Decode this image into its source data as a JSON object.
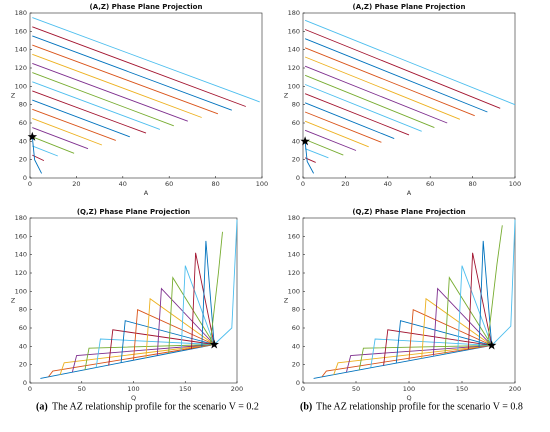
{
  "chart_data": [
    {
      "type": "line",
      "title": "(A,Z) Phase Plane Projection",
      "xlabel": "A",
      "ylabel": "Z",
      "xlim": [
        0,
        100
      ],
      "xticks": [
        0,
        20,
        40,
        60,
        80,
        100
      ],
      "ylim": [
        0,
        180
      ],
      "yticks": [
        0,
        20,
        40,
        60,
        80,
        100,
        120,
        140,
        160,
        180
      ],
      "star": {
        "x": 1,
        "y": 45
      },
      "series": [
        {
          "color": "#4dbeee",
          "x": [
            1,
            99
          ],
          "values": [
            175,
            83
          ]
        },
        {
          "color": "#a2142f",
          "x": [
            1,
            93
          ],
          "values": [
            165,
            78
          ]
        },
        {
          "color": "#0072bd",
          "x": [
            1,
            87
          ],
          "values": [
            155,
            74
          ]
        },
        {
          "color": "#d95319",
          "x": [
            1,
            81
          ],
          "values": [
            145,
            70
          ]
        },
        {
          "color": "#edb120",
          "x": [
            1,
            74
          ],
          "values": [
            135,
            66
          ]
        },
        {
          "color": "#7e2f8e",
          "x": [
            1,
            68
          ],
          "values": [
            125,
            62
          ]
        },
        {
          "color": "#77ac30",
          "x": [
            1,
            62
          ],
          "values": [
            115,
            57
          ]
        },
        {
          "color": "#4dbeee",
          "x": [
            1,
            56
          ],
          "values": [
            105,
            53
          ]
        },
        {
          "color": "#a2142f",
          "x": [
            1,
            50
          ],
          "values": [
            95,
            49
          ]
        },
        {
          "color": "#0072bd",
          "x": [
            1,
            43
          ],
          "values": [
            85,
            45
          ]
        },
        {
          "color": "#d95319",
          "x": [
            1,
            37
          ],
          "values": [
            75,
            41
          ]
        },
        {
          "color": "#edb120",
          "x": [
            1,
            31
          ],
          "values": [
            65,
            36
          ]
        },
        {
          "color": "#7e2f8e",
          "x": [
            1,
            25
          ],
          "values": [
            55,
            32
          ]
        },
        {
          "color": "#77ac30",
          "x": [
            1,
            19
          ],
          "values": [
            45,
            27
          ]
        },
        {
          "color": "#4dbeee",
          "x": [
            1,
            12
          ],
          "values": [
            35,
            24
          ]
        },
        {
          "color": "#a2142f",
          "x": [
            1,
            6
          ],
          "values": [
            25,
            19
          ]
        },
        {
          "color": "#0072bd",
          "x": [
            1,
            2,
            5
          ],
          "values": [
            45,
            20,
            5
          ]
        }
      ]
    },
    {
      "type": "line",
      "title": "(A,Z) Phase Plane Projection",
      "xlabel": "A",
      "ylabel": "Z",
      "xlim": [
        0,
        100
      ],
      "xticks": [
        0,
        20,
        40,
        60,
        80,
        100
      ],
      "ylim": [
        0,
        180
      ],
      "yticks": [
        0,
        20,
        40,
        60,
        80,
        100,
        120,
        140,
        160,
        180
      ],
      "star": {
        "x": 1,
        "y": 40
      },
      "series": [
        {
          "color": "#4dbeee",
          "x": [
            1,
            100
          ],
          "values": [
            172,
            80
          ]
        },
        {
          "color": "#a2142f",
          "x": [
            1,
            93
          ],
          "values": [
            162,
            76
          ]
        },
        {
          "color": "#0072bd",
          "x": [
            1,
            87
          ],
          "values": [
            152,
            72
          ]
        },
        {
          "color": "#d95319",
          "x": [
            1,
            81
          ],
          "values": [
            142,
            68
          ]
        },
        {
          "color": "#edb120",
          "x": [
            1,
            74
          ],
          "values": [
            132,
            64
          ]
        },
        {
          "color": "#7e2f8e",
          "x": [
            1,
            68
          ],
          "values": [
            122,
            60
          ]
        },
        {
          "color": "#77ac30",
          "x": [
            1,
            62
          ],
          "values": [
            112,
            55
          ]
        },
        {
          "color": "#4dbeee",
          "x": [
            1,
            56
          ],
          "values": [
            102,
            51
          ]
        },
        {
          "color": "#a2142f",
          "x": [
            1,
            50
          ],
          "values": [
            92,
            47
          ]
        },
        {
          "color": "#0072bd",
          "x": [
            1,
            43
          ],
          "values": [
            82,
            43
          ]
        },
        {
          "color": "#d95319",
          "x": [
            1,
            37
          ],
          "values": [
            72,
            39
          ]
        },
        {
          "color": "#edb120",
          "x": [
            1,
            31
          ],
          "values": [
            62,
            34
          ]
        },
        {
          "color": "#7e2f8e",
          "x": [
            1,
            25
          ],
          "values": [
            52,
            30
          ]
        },
        {
          "color": "#77ac30",
          "x": [
            1,
            19
          ],
          "values": [
            42,
            25
          ]
        },
        {
          "color": "#4dbeee",
          "x": [
            1,
            12
          ],
          "values": [
            32,
            22
          ]
        },
        {
          "color": "#a2142f",
          "x": [
            1,
            6
          ],
          "values": [
            22,
            17
          ]
        },
        {
          "color": "#0072bd",
          "x": [
            1,
            2,
            5
          ],
          "values": [
            40,
            18,
            5
          ]
        }
      ]
    },
    {
      "type": "line",
      "title": "(Q,Z) Phase Plane Projection",
      "xlabel": "Q",
      "ylabel": "Z",
      "xlim": [
        0,
        200
      ],
      "xticks": [
        0,
        50,
        100,
        150,
        200
      ],
      "ylim": [
        0,
        180
      ],
      "yticks": [
        0,
        20,
        40,
        60,
        80,
        100,
        120,
        140,
        160,
        180
      ],
      "star": {
        "x": 178,
        "y": 42
      },
      "series": [
        {
          "color": "#0072bd",
          "x": [
            10,
            178
          ],
          "values": [
            5,
            42
          ]
        },
        {
          "color": "#d95319",
          "x": [
            18,
            22,
            178
          ],
          "values": [
            7,
            13,
            42
          ]
        },
        {
          "color": "#edb120",
          "x": [
            29,
            33,
            178
          ],
          "values": [
            9,
            22,
            42
          ]
        },
        {
          "color": "#7e2f8e",
          "x": [
            41,
            45,
            178
          ],
          "values": [
            12,
            30,
            42
          ]
        },
        {
          "color": "#77ac30",
          "x": [
            53,
            57,
            178
          ],
          "values": [
            14,
            38,
            42
          ]
        },
        {
          "color": "#4dbeee",
          "x": [
            64,
            68,
            178
          ],
          "values": [
            17,
            48,
            42
          ]
        },
        {
          "color": "#a2142f",
          "x": [
            76,
            80,
            178
          ],
          "values": [
            19,
            58,
            42
          ]
        },
        {
          "color": "#0072bd",
          "x": [
            88,
            92,
            178
          ],
          "values": [
            22,
            68,
            42
          ]
        },
        {
          "color": "#d95319",
          "x": [
            100,
            104,
            178
          ],
          "values": [
            25,
            80,
            42
          ]
        },
        {
          "color": "#edb120",
          "x": [
            112,
            116,
            178
          ],
          "values": [
            27,
            92,
            42
          ]
        },
        {
          "color": "#7e2f8e",
          "x": [
            123,
            127,
            178
          ],
          "values": [
            30,
            103,
            42
          ]
        },
        {
          "color": "#77ac30",
          "x": [
            134,
            138,
            178
          ],
          "values": [
            32,
            115,
            42
          ]
        },
        {
          "color": "#4dbeee",
          "x": [
            146,
            150,
            178
          ],
          "values": [
            35,
            128,
            42
          ]
        },
        {
          "color": "#a2142f",
          "x": [
            156,
            160,
            178
          ],
          "values": [
            37,
            142,
            42
          ]
        },
        {
          "color": "#0072bd",
          "x": [
            166,
            170,
            178
          ],
          "values": [
            39,
            155,
            42
          ]
        },
        {
          "color": "#77ac30",
          "x": [
            174,
            182,
            186
          ],
          "values": [
            41,
            120,
            165
          ]
        },
        {
          "color": "#4dbeee",
          "x": [
            178,
            195,
            200
          ],
          "values": [
            42,
            60,
            178
          ]
        }
      ]
    },
    {
      "type": "line",
      "title": "(Q,Z) Phase Plane Projection",
      "xlabel": "Q",
      "ylabel": "Z",
      "xlim": [
        0,
        200
      ],
      "xticks": [
        0,
        50,
        100,
        150,
        200
      ],
      "ylim": [
        0,
        180
      ],
      "yticks": [
        0,
        20,
        40,
        60,
        80,
        100,
        120,
        140,
        160,
        180
      ],
      "star": {
        "x": 178,
        "y": 41
      },
      "series": [
        {
          "color": "#0072bd",
          "x": [
            10,
            178
          ],
          "values": [
            5,
            41
          ]
        },
        {
          "color": "#d95319",
          "x": [
            18,
            22,
            178
          ],
          "values": [
            7,
            13,
            41
          ]
        },
        {
          "color": "#edb120",
          "x": [
            29,
            33,
            178
          ],
          "values": [
            9,
            22,
            41
          ]
        },
        {
          "color": "#7e2f8e",
          "x": [
            41,
            45,
            178
          ],
          "values": [
            12,
            30,
            41
          ]
        },
        {
          "color": "#77ac30",
          "x": [
            53,
            57,
            178
          ],
          "values": [
            14,
            38,
            41
          ]
        },
        {
          "color": "#4dbeee",
          "x": [
            64,
            68,
            178
          ],
          "values": [
            17,
            48,
            41
          ]
        },
        {
          "color": "#a2142f",
          "x": [
            76,
            80,
            178
          ],
          "values": [
            19,
            58,
            41
          ]
        },
        {
          "color": "#0072bd",
          "x": [
            88,
            92,
            178
          ],
          "values": [
            22,
            68,
            41
          ]
        },
        {
          "color": "#d95319",
          "x": [
            100,
            104,
            178
          ],
          "values": [
            25,
            80,
            41
          ]
        },
        {
          "color": "#edb120",
          "x": [
            112,
            116,
            178
          ],
          "values": [
            27,
            92,
            41
          ]
        },
        {
          "color": "#7e2f8e",
          "x": [
            123,
            127,
            178
          ],
          "values": [
            30,
            103,
            41
          ]
        },
        {
          "color": "#77ac30",
          "x": [
            134,
            138,
            178
          ],
          "values": [
            32,
            115,
            41
          ]
        },
        {
          "color": "#4dbeee",
          "x": [
            146,
            150,
            178
          ],
          "values": [
            35,
            128,
            41
          ]
        },
        {
          "color": "#a2142f",
          "x": [
            156,
            160,
            178
          ],
          "values": [
            37,
            142,
            41
          ]
        },
        {
          "color": "#0072bd",
          "x": [
            166,
            170,
            178
          ],
          "values": [
            39,
            155,
            41
          ]
        },
        {
          "color": "#77ac30",
          "x": [
            174,
            183,
            188
          ],
          "values": [
            41,
            130,
            172
          ]
        },
        {
          "color": "#4dbeee",
          "x": [
            178,
            196,
            200
          ],
          "values": [
            41,
            62,
            178
          ]
        }
      ]
    }
  ],
  "captions": [
    {
      "label": "(a)",
      "text": "The AZ relationship profile for the scenario V = 0.2"
    },
    {
      "label": "(b)",
      "text": "The AZ relationship profile for the scenario V = 0.8"
    }
  ]
}
